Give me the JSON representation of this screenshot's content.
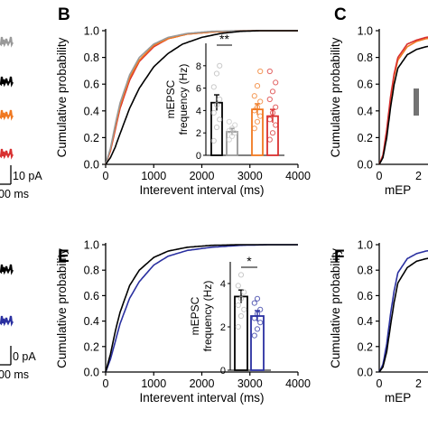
{
  "chart_data": [
    {
      "panel": "B",
      "type": "line",
      "xlabel": "Interevent interval (ms)",
      "ylabel": "Cumulative probability",
      "xlim": [
        0,
        4000
      ],
      "ylim": [
        0,
        1.0
      ],
      "xticks": [
        "0",
        "1000",
        "2000",
        "3000",
        "4000"
      ],
      "yticks": [
        "0.0",
        "0.2",
        "0.4",
        "0.6",
        "0.8",
        "1.0"
      ],
      "series": [
        {
          "color": "#000000",
          "x": [
            0,
            100,
            200,
            300,
            500,
            700,
            1000,
            1300,
            1600,
            2000,
            2400,
            2800,
            3200,
            4000
          ],
          "values": [
            0,
            0.05,
            0.13,
            0.23,
            0.42,
            0.57,
            0.73,
            0.83,
            0.9,
            0.95,
            0.98,
            0.995,
            1.0,
            1.0
          ]
        },
        {
          "color": "#999999",
          "x": [
            0,
            100,
            200,
            300,
            500,
            700,
            1000,
            1300,
            1700,
            2200,
            2800,
            4000
          ],
          "values": [
            0,
            0.12,
            0.3,
            0.46,
            0.67,
            0.8,
            0.9,
            0.95,
            0.98,
            0.995,
            1.0,
            1.0
          ]
        },
        {
          "color": "#f07820",
          "x": [
            0,
            100,
            200,
            300,
            500,
            700,
            1000,
            1300,
            1700,
            2200,
            2800,
            4000
          ],
          "values": [
            0,
            0.11,
            0.28,
            0.44,
            0.65,
            0.78,
            0.89,
            0.94,
            0.975,
            0.99,
            1.0,
            1.0
          ]
        },
        {
          "color": "#d83030",
          "x": [
            0,
            100,
            200,
            300,
            500,
            700,
            1000,
            1300,
            1700,
            2200,
            2800,
            4000
          ],
          "values": [
            0,
            0.1,
            0.26,
            0.42,
            0.63,
            0.77,
            0.88,
            0.94,
            0.975,
            0.99,
            1.0,
            1.0
          ]
        }
      ],
      "inset": {
        "type": "bar",
        "ylabel": "mEPSC frequency (Hz)",
        "ylim": [
          0,
          10
        ],
        "yticks": [
          "0",
          "2",
          "4",
          "6",
          "8"
        ],
        "significance": "**",
        "bars": [
          {
            "color": "#000000",
            "value": 4.7,
            "error": 0.7,
            "points": [
              1.3,
              2.5,
              3.2,
              3.8,
              4.5,
              5.0,
              6.1,
              7.3,
              8.0
            ]
          },
          {
            "color": "#999999",
            "value": 2.1,
            "error": 0.3,
            "points": [
              1.4,
              1.7,
              2.0,
              2.2,
              2.4,
              2.7,
              3.0
            ]
          },
          {
            "color": "#f07820",
            "value": 4.1,
            "error": 0.5,
            "points": [
              2.4,
              3.0,
              3.5,
              4.0,
              4.3,
              4.8,
              5.3,
              6.2,
              7.5
            ]
          },
          {
            "color": "#d83030",
            "value": 3.5,
            "error": 0.6,
            "points": [
              1.4,
              2.0,
              2.7,
              3.2,
              3.8,
              4.3,
              5.0,
              5.7,
              6.5,
              7.5
            ]
          }
        ]
      }
    },
    {
      "panel": "E",
      "type": "line",
      "xlabel": "Interevent interval (ms)",
      "ylabel": "Cumulative probability",
      "xlim": [
        0,
        4000
      ],
      "ylim": [
        0,
        1.0
      ],
      "xticks": [
        "0",
        "1000",
        "2000",
        "3000",
        "4000"
      ],
      "yticks": [
        "0.0",
        "0.2",
        "0.4",
        "0.6",
        "0.8",
        "1.0"
      ],
      "series": [
        {
          "color": "#000000",
          "x": [
            0,
            100,
            200,
            300,
            500,
            700,
            1000,
            1300,
            1700,
            2200,
            2800,
            4000
          ],
          "values": [
            0,
            0.14,
            0.32,
            0.47,
            0.68,
            0.8,
            0.9,
            0.95,
            0.98,
            0.995,
            1.0,
            1.0
          ]
        },
        {
          "color": "#2a30a0",
          "x": [
            0,
            100,
            200,
            300,
            500,
            700,
            1000,
            1300,
            1700,
            2200,
            2800,
            3400,
            4000
          ],
          "values": [
            0,
            0.1,
            0.24,
            0.38,
            0.58,
            0.71,
            0.84,
            0.91,
            0.955,
            0.98,
            0.995,
            1.0,
            1.0
          ]
        }
      ],
      "inset": {
        "type": "bar",
        "ylabel": "mEPSC frequency (Hz)",
        "ylim": [
          0,
          5
        ],
        "yticks": [
          "0",
          "2",
          "4"
        ],
        "significance": "*",
        "bars": [
          {
            "color": "#000000",
            "value": 3.4,
            "error": 0.3,
            "points": [
              2.0,
              2.5,
              2.8,
              3.0,
              3.3,
              3.6,
              3.9,
              4.4
            ]
          },
          {
            "color": "#2a30a0",
            "value": 2.5,
            "error": 0.25,
            "points": [
              1.6,
              1.9,
              2.2,
              2.4,
              2.6,
              2.8,
              3.1,
              3.3
            ]
          }
        ]
      }
    },
    {
      "panel": "C",
      "type": "line",
      "ylabel": "Cumulative probability",
      "xlabel": "mEP",
      "yticks": [
        "0.0",
        "0.2",
        "0.4",
        "0.6",
        "0.8",
        "1.0"
      ],
      "xticks": [
        "0",
        "2"
      ],
      "ylim": [
        0,
        1.0
      ],
      "series": [
        {
          "color": "#000000",
          "x": [
            0,
            2,
            4,
            6,
            8,
            10,
            15,
            20,
            25,
            30
          ],
          "values": [
            0,
            0.05,
            0.2,
            0.42,
            0.6,
            0.72,
            0.82,
            0.86,
            0.88,
            0.89
          ]
        },
        {
          "color": "#d83030",
          "x": [
            0,
            2,
            4,
            6,
            8,
            10,
            15,
            20,
            25,
            30
          ],
          "values": [
            0,
            0.07,
            0.26,
            0.5,
            0.68,
            0.8,
            0.9,
            0.93,
            0.95,
            0.96
          ]
        },
        {
          "color": "#f07820",
          "x": [
            0,
            2,
            4,
            6,
            8,
            10,
            15,
            20,
            25,
            30
          ],
          "values": [
            0,
            0.06,
            0.24,
            0.48,
            0.66,
            0.78,
            0.88,
            0.92,
            0.94,
            0.95
          ]
        }
      ]
    },
    {
      "panel": "F",
      "type": "line",
      "ylabel": "Cumulative probability",
      "xlabel": "mEP",
      "yticks": [
        "0.0",
        "0.2",
        "0.4",
        "0.6",
        "0.8",
        "1.0"
      ],
      "xticks": [
        "0",
        "2"
      ],
      "ylim": [
        0,
        1.0
      ],
      "series": [
        {
          "color": "#000000",
          "x": [
            0,
            2,
            4,
            6,
            8,
            10,
            15,
            20,
            25,
            30
          ],
          "values": [
            0,
            0.04,
            0.16,
            0.36,
            0.55,
            0.7,
            0.82,
            0.87,
            0.89,
            0.9
          ]
        },
        {
          "color": "#2a30a0",
          "x": [
            0,
            2,
            4,
            6,
            8,
            10,
            15,
            20,
            25,
            30
          ],
          "values": [
            0,
            0.06,
            0.22,
            0.45,
            0.64,
            0.78,
            0.89,
            0.93,
            0.95,
            0.96
          ]
        }
      ]
    }
  ],
  "panels": {
    "B": {
      "letter": "B"
    },
    "C": {
      "letter": "C"
    },
    "E": {
      "letter": "E"
    },
    "F": {
      "letter": "F"
    }
  },
  "scale_bars": {
    "top_amp": "10 pA",
    "top_time": "00 ms",
    "bottom_amp": "0 pA",
    "bottom_time": "00 ms"
  },
  "traces": [
    {
      "color": "#999999"
    },
    {
      "color": "#000000"
    },
    {
      "color": "#f07820"
    },
    {
      "color": "#d83030"
    },
    {
      "color": "#000000"
    },
    {
      "color": "#2a30a0"
    }
  ]
}
